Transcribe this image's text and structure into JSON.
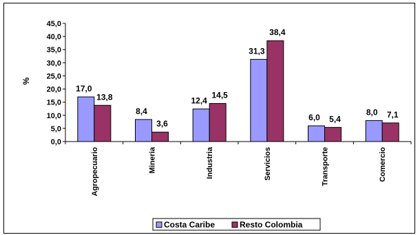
{
  "chart_data": {
    "type": "bar",
    "title": "",
    "xlabel": "",
    "ylabel": "%",
    "ylim": [
      0,
      45
    ],
    "yticks": [
      "0,0",
      "5,0",
      "10,0",
      "15,0",
      "20,0",
      "25,0",
      "30,0",
      "35,0",
      "40,0",
      "45,0"
    ],
    "grid": false,
    "legend": "bottom",
    "categories": [
      "Agropecuario",
      "Mineria",
      "Industria",
      "Servicios",
      "Transporte",
      "Comercio"
    ],
    "series": [
      {
        "name": "Costa Caribe",
        "color": "#9999ff",
        "values": [
          17.0,
          8.4,
          12.4,
          31.3,
          6.0,
          8.0
        ],
        "labels": [
          "17,0",
          "8,4",
          "12,4",
          "31,3",
          "6,0",
          "8,0"
        ]
      },
      {
        "name": "Resto Colombia",
        "color": "#993366",
        "values": [
          13.8,
          3.6,
          14.5,
          38.4,
          5.4,
          7.1
        ],
        "labels": [
          "13,8",
          "3,6",
          "14,5",
          "38,4",
          "5,4",
          "7,1"
        ]
      }
    ]
  }
}
